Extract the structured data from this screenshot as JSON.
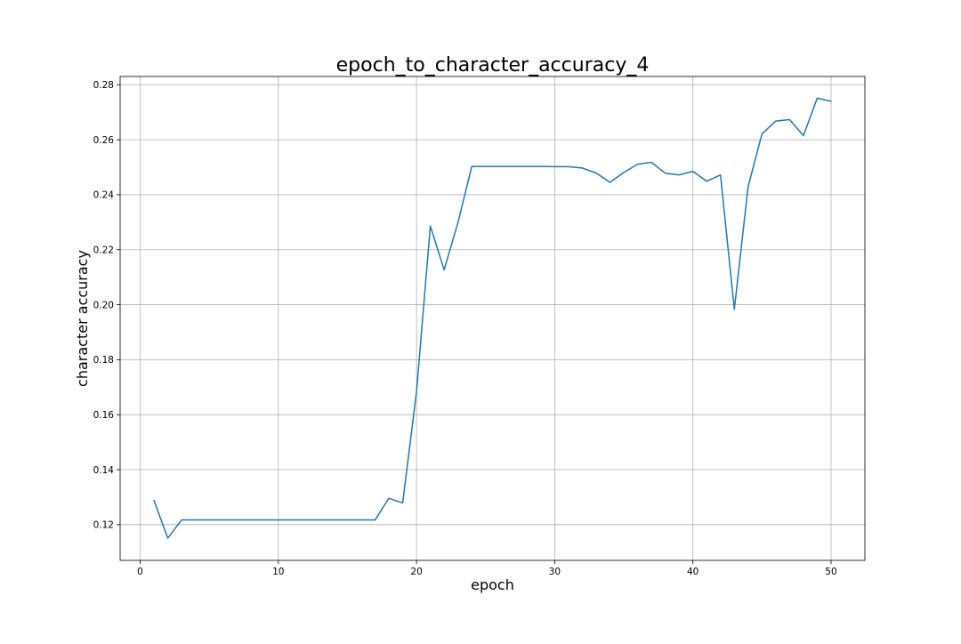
{
  "chart_data": {
    "type": "line",
    "title": "epoch_to_character_accuracy_4",
    "xlabel": "epoch",
    "ylabel": "character accuracy",
    "xlim": [
      -1.45,
      52.45
    ],
    "ylim": [
      0.107,
      0.283
    ],
    "xticks": [
      0,
      10,
      20,
      30,
      40,
      50
    ],
    "xtick_labels": [
      "0",
      "10",
      "20",
      "30",
      "40",
      "50"
    ],
    "yticks": [
      0.12,
      0.14,
      0.16,
      0.18,
      0.2,
      0.22,
      0.24,
      0.26,
      0.28
    ],
    "ytick_labels": [
      "0.12",
      "0.14",
      "0.16",
      "0.18",
      "0.20",
      "0.22",
      "0.24",
      "0.26",
      "0.28"
    ],
    "grid": true,
    "series": [
      {
        "color": "#1f77b4",
        "x": [
          1,
          2,
          3,
          4,
          5,
          6,
          7,
          8,
          9,
          10,
          11,
          12,
          13,
          14,
          15,
          16,
          17,
          18,
          19,
          20,
          21,
          22,
          23,
          24,
          25,
          26,
          27,
          28,
          29,
          30,
          31,
          32,
          33,
          34,
          35,
          36,
          37,
          38,
          39,
          40,
          41,
          42,
          43,
          44,
          45,
          46,
          47,
          48,
          49,
          50
        ],
        "values": [
          0.1288,
          0.1151,
          0.1217,
          0.1217,
          0.1217,
          0.1217,
          0.1217,
          0.1217,
          0.1217,
          0.1217,
          0.1217,
          0.1217,
          0.1217,
          0.1217,
          0.1217,
          0.1217,
          0.1217,
          0.1296,
          0.1279,
          0.1683,
          0.2286,
          0.2127,
          0.2299,
          0.2503,
          0.2503,
          0.2503,
          0.2503,
          0.2503,
          0.2503,
          0.2502,
          0.2502,
          0.2497,
          0.2479,
          0.2445,
          0.2481,
          0.2511,
          0.2518,
          0.2478,
          0.2472,
          0.2485,
          0.2449,
          0.2472,
          0.1983,
          0.243,
          0.2621,
          0.2668,
          0.2673,
          0.2615,
          0.2751,
          0.274
        ]
      }
    ]
  }
}
